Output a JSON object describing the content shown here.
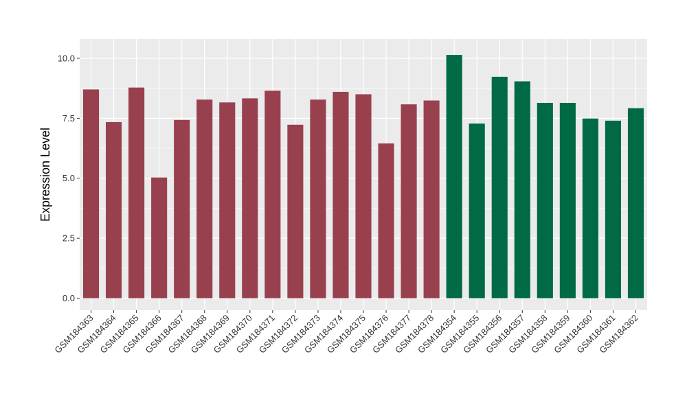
{
  "chart_data": {
    "type": "bar",
    "title": "",
    "xlabel": "",
    "ylabel": "Expression Level",
    "ylim": [
      -0.5,
      10.8
    ],
    "yticks": [
      "0.0",
      "2.5",
      "5.0",
      "7.5",
      "10.0"
    ],
    "ytick_values": [
      0,
      2.5,
      5,
      7.5,
      10
    ],
    "grid": true,
    "legend": "none",
    "panel_background": "#ebebeb",
    "grid_color": "#ffffff",
    "categories": [
      "GSM184363",
      "GSM184364",
      "GSM184365",
      "GSM184366",
      "GSM184367",
      "GSM184368",
      "GSM184369",
      "GSM184370",
      "GSM184371",
      "GSM184372",
      "GSM184373",
      "GSM184374",
      "GSM184375",
      "GSM184376",
      "GSM184377",
      "GSM184378",
      "GSM184354",
      "GSM184355",
      "GSM184356",
      "GSM184357",
      "GSM184358",
      "GSM184359",
      "GSM184360",
      "GSM184361",
      "GSM184362"
    ],
    "values": [
      8.7,
      7.34,
      8.78,
      5.03,
      7.43,
      8.28,
      8.16,
      8.33,
      8.65,
      7.23,
      8.28,
      8.6,
      8.5,
      6.45,
      8.08,
      8.24,
      10.14,
      7.28,
      9.23,
      9.04,
      8.14,
      8.14,
      7.49,
      7.4,
      7.92
    ],
    "bar_colors": [
      "#99404e",
      "#99404e",
      "#99404e",
      "#99404e",
      "#99404e",
      "#99404e",
      "#99404e",
      "#99404e",
      "#99404e",
      "#99404e",
      "#99404e",
      "#99404e",
      "#99404e",
      "#99404e",
      "#99404e",
      "#99404e",
      "#006a45",
      "#006a45",
      "#006a45",
      "#006a45",
      "#006a45",
      "#006a45",
      "#006a45",
      "#006a45",
      "#006a45"
    ]
  }
}
